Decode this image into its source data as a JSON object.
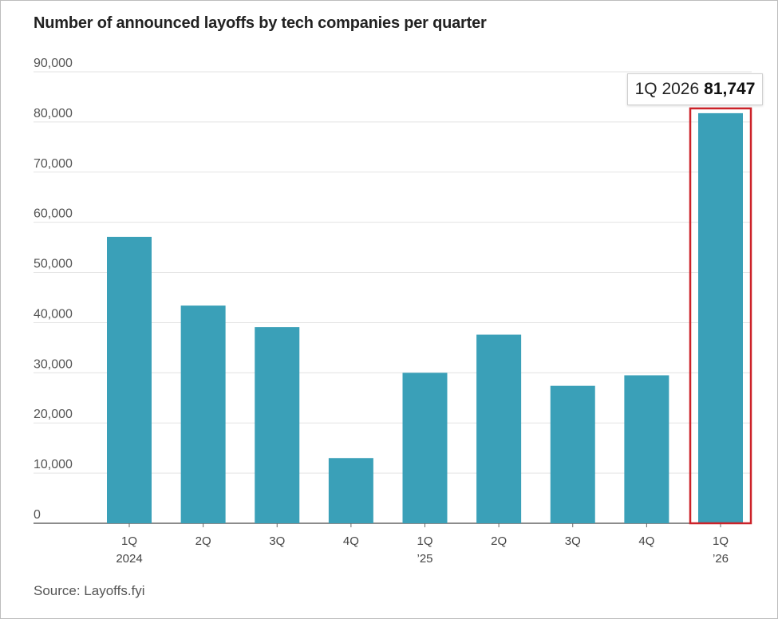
{
  "chart_data": {
    "type": "bar",
    "title": "Number of announced layoffs by tech companies per quarter",
    "source": "Source: Layoffs.fyi",
    "xlabel": "",
    "ylabel": "",
    "ylim": [
      0,
      90000
    ],
    "yticks": [
      "0",
      "10,000",
      "20,000",
      "30,000",
      "40,000",
      "50,000",
      "60,000",
      "70,000",
      "80,000",
      "90,000"
    ],
    "grid": true,
    "categories": [
      "1Q 2024",
      "2Q",
      "3Q",
      "4Q",
      "1Q ’25",
      "2Q",
      "3Q",
      "4Q",
      "1Q ’26"
    ],
    "category_labels": [
      [
        "1Q",
        "2024"
      ],
      [
        "2Q",
        ""
      ],
      [
        "3Q",
        ""
      ],
      [
        "4Q",
        ""
      ],
      [
        "1Q",
        "’25"
      ],
      [
        "2Q",
        ""
      ],
      [
        "3Q",
        ""
      ],
      [
        "4Q",
        ""
      ],
      [
        "1Q",
        "’26"
      ]
    ],
    "values": [
      57100,
      43400,
      39100,
      13000,
      30000,
      37600,
      27400,
      29500,
      81747
    ],
    "bar_color": "#3aa0b8",
    "highlight_color": "#cc2229",
    "callout": {
      "label": "1Q 2026",
      "value": "81,747"
    }
  }
}
